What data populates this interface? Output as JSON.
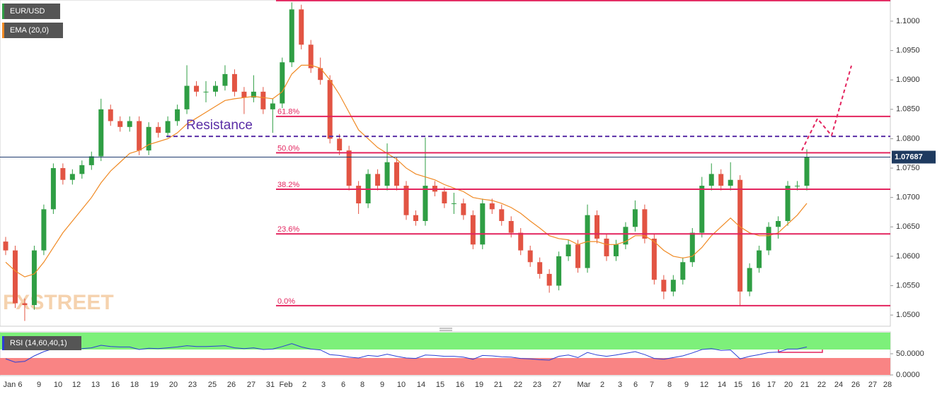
{
  "chart_data": {
    "type": "candlestick",
    "symbol": "EUR/USD",
    "ema_label": "EMA (20,0)",
    "watermark": "FXSTREET",
    "up_color": "#2f9e44",
    "down_color": "#e25443",
    "open": [
      1.0625,
      1.061,
      1.052,
      1.0517,
      1.061,
      1.068,
      1.075,
      1.073,
      1.074,
      1.0755,
      1.077,
      1.085,
      1.083,
      1.082,
      1.083,
      1.078,
      1.082,
      1.081,
      1.083,
      1.085,
      1.089,
      1.088,
      1.088,
      1.089,
      1.091,
      1.088,
      1.087,
      1.088,
      1.085,
      1.086,
      1.093,
      1.102,
      1.096,
      1.092,
      1.09,
      1.08,
      1.078,
      1.072,
      1.069,
      1.074,
      1.072,
      1.076,
      1.072,
      1.067,
      1.066,
      1.072,
      1.071,
      1.069,
      1.069,
      1.067,
      1.062,
      1.069,
      1.068,
      1.066,
      1.064,
      1.061,
      1.059,
      1.057,
      1.055,
      1.06,
      1.062,
      1.058,
      1.067,
      1.063,
      1.06,
      1.062,
      1.065,
      1.068,
      1.063,
      1.056,
      1.054,
      1.056,
      1.059,
      1.064,
      1.072,
      1.074,
      1.072,
      1.073,
      1.054,
      1.058,
      1.061,
      1.065,
      1.066,
      1.072,
      1.072
    ],
    "high": [
      1.0633,
      1.0618,
      1.0528,
      1.0618,
      1.0688,
      1.0758,
      1.0758,
      1.0748,
      1.0763,
      1.0778,
      1.0868,
      1.0858,
      1.0838,
      1.0838,
      1.0838,
      1.0828,
      1.0828,
      1.0838,
      1.0858,
      1.0925,
      1.0898,
      1.0898,
      1.0898,
      1.0925,
      1.0918,
      1.0888,
      1.0908,
      1.0888,
      1.0868,
      1.0938,
      1.1032,
      1.1028,
      1.0968,
      1.0938,
      1.0908,
      1.0808,
      1.0788,
      1.0728,
      1.0748,
      1.0748,
      1.0792,
      1.0768,
      1.0728,
      1.0678,
      1.0802,
      1.0728,
      1.0718,
      1.0708,
      1.0698,
      1.0678,
      1.0698,
      1.0698,
      1.0688,
      1.0668,
      1.0648,
      1.0618,
      1.0598,
      1.0578,
      1.0608,
      1.0628,
      1.0628,
      1.0688,
      1.0678,
      1.0638,
      1.0628,
      1.0658,
      1.0695,
      1.0688,
      1.0638,
      1.0568,
      1.0568,
      1.0598,
      1.0648,
      1.0735,
      1.0758,
      1.0748,
      1.076,
      1.0738,
      1.0588,
      1.0618,
      1.0658,
      1.0668,
      1.0728,
      1.0728,
      1.0782
    ],
    "low": [
      1.0602,
      1.0512,
      1.049,
      1.0509,
      1.0602,
      1.0672,
      1.0722,
      1.0722,
      1.0732,
      1.0747,
      1.0762,
      1.0822,
      1.0812,
      1.0812,
      1.0772,
      1.0772,
      1.0802,
      1.0802,
      1.0822,
      1.0842,
      1.0872,
      1.0862,
      1.0872,
      1.0882,
      1.0872,
      1.0842,
      1.0862,
      1.0842,
      1.081,
      1.0852,
      1.0922,
      1.0952,
      1.0912,
      1.0892,
      1.0792,
      1.0772,
      1.0712,
      1.0672,
      1.0682,
      1.0712,
      1.0712,
      1.0712,
      1.0662,
      1.0652,
      1.0652,
      1.0702,
      1.0682,
      1.0672,
      1.0662,
      1.0612,
      1.0612,
      1.0672,
      1.0652,
      1.0632,
      1.0602,
      1.0582,
      1.0562,
      1.0538,
      1.0542,
      1.0592,
      1.0572,
      1.0572,
      1.0622,
      1.0592,
      1.0592,
      1.0612,
      1.0642,
      1.0622,
      1.0552,
      1.0527,
      1.0532,
      1.0552,
      1.0582,
      1.0632,
      1.0712,
      1.0712,
      1.0712,
      1.0515,
      1.0532,
      1.0572,
      1.0602,
      1.063,
      1.0652,
      1.0712,
      1.0712
    ],
    "close": [
      1.061,
      1.052,
      1.0517,
      1.061,
      1.068,
      1.075,
      1.073,
      1.074,
      1.0755,
      1.077,
      1.085,
      1.083,
      1.082,
      1.083,
      1.078,
      1.082,
      1.081,
      1.083,
      1.085,
      1.089,
      1.088,
      1.088,
      1.089,
      1.091,
      1.088,
      1.087,
      1.088,
      1.085,
      1.086,
      1.093,
      1.102,
      1.096,
      1.092,
      1.09,
      1.08,
      1.078,
      1.072,
      1.069,
      1.074,
      1.072,
      1.076,
      1.072,
      1.067,
      1.066,
      1.072,
      1.071,
      1.069,
      1.069,
      1.067,
      1.062,
      1.069,
      1.068,
      1.066,
      1.064,
      1.061,
      1.059,
      1.057,
      1.055,
      1.06,
      1.062,
      1.058,
      1.067,
      1.063,
      1.06,
      1.062,
      1.065,
      1.068,
      1.063,
      1.056,
      1.054,
      1.056,
      1.059,
      1.064,
      1.072,
      1.074,
      1.072,
      1.073,
      1.054,
      1.058,
      1.061,
      1.065,
      1.066,
      1.072,
      1.072,
      1.0769
    ],
    "ema": {
      "color": "#f08a24",
      "values": [
        1.059,
        1.0575,
        1.0565,
        1.057,
        1.059,
        1.0615,
        1.064,
        1.066,
        1.068,
        1.07,
        1.0725,
        1.0745,
        1.076,
        1.0775,
        1.078,
        1.079,
        1.0795,
        1.08,
        1.081,
        1.0825,
        1.0835,
        1.0845,
        1.0855,
        1.0865,
        1.0868,
        1.087,
        1.0872,
        1.087,
        1.0868,
        1.088,
        1.091,
        1.0925,
        1.0925,
        1.092,
        1.09,
        1.0875,
        1.0845,
        1.0815,
        1.08,
        1.0785,
        1.0775,
        1.0765,
        1.075,
        1.074,
        1.0735,
        1.073,
        1.0722,
        1.0716,
        1.071,
        1.07,
        1.0697,
        1.0695,
        1.069,
        1.0683,
        1.0673,
        1.066,
        1.0648,
        1.0635,
        1.063,
        1.0628,
        1.062,
        1.0625,
        1.0625,
        1.062,
        1.062,
        1.0625,
        1.0635,
        1.0635,
        1.0625,
        1.061,
        1.06,
        1.0597,
        1.06,
        1.0615,
        1.0635,
        1.065,
        1.0665,
        1.065,
        1.064,
        1.0635,
        1.0635,
        1.064,
        1.0655,
        1.067,
        1.069
      ]
    },
    "ylim": [
      1.0481,
      1.1036
    ],
    "yticks": [
      {
        "value": 1.1,
        "label": "1.1000"
      },
      {
        "value": 1.095,
        "label": "1.0950"
      },
      {
        "value": 1.09,
        "label": "1.0900"
      },
      {
        "value": 1.085,
        "label": "1.0850"
      },
      {
        "value": 1.08,
        "label": "1.0800"
      },
      {
        "value": 1.075,
        "label": "1.0750"
      },
      {
        "value": 1.07,
        "label": "1.0700"
      },
      {
        "value": 1.065,
        "label": "1.0650"
      },
      {
        "value": 1.06,
        "label": "1.0600"
      },
      {
        "value": 1.055,
        "label": "1.0550"
      },
      {
        "value": 1.05,
        "label": "1.0500"
      }
    ],
    "last_price": 1.07687,
    "resistance": {
      "label": "Resistance",
      "value": 1.0804,
      "color": "#5a2ea6"
    },
    "fib_color": "#e3245e",
    "fib_levels": [
      {
        "price": 1.1035
      },
      {
        "label": "61.8%",
        "price": 1.0838
      },
      {
        "label": "50.0%",
        "price": 1.0776
      },
      {
        "label": "38.2%",
        "price": 1.0714
      },
      {
        "label": "23.6%",
        "price": 1.0638
      },
      {
        "label": "0.0%",
        "price": 1.0516
      }
    ],
    "x_labels": [
      "Jan 6",
      "9",
      "10",
      "12",
      "13",
      "16",
      "18",
      "19",
      "20",
      "23",
      "25",
      "26",
      "27",
      "31",
      "Feb",
      "2",
      "3",
      "6",
      "8",
      "9",
      "10",
      "14",
      "15",
      "16",
      "19",
      "21",
      "22",
      "23",
      "27",
      "Mar",
      "2",
      "3",
      "6",
      "7",
      "8",
      "9",
      "12",
      "14",
      "15",
      "16",
      "17",
      "20",
      "21",
      "22",
      "24",
      "26",
      "27",
      "28"
    ],
    "rsi": {
      "label": "RSI (14,60,40,1)",
      "color": "#2b3fd6",
      "upper": 60,
      "lower": 40,
      "ylim": [
        0,
        100
      ],
      "yticks": [
        {
          "value": 50,
          "label": "50.0000"
        },
        {
          "value": 0,
          "label": "0.0000"
        }
      ],
      "values": [
        38,
        30,
        32,
        45,
        55,
        62,
        60,
        61,
        62,
        64,
        70,
        67,
        66,
        66,
        60,
        63,
        62,
        64,
        66,
        69,
        67,
        67,
        68,
        69,
        64,
        62,
        64,
        60,
        61,
        67,
        74,
        66,
        61,
        59,
        48,
        46,
        42,
        40,
        46,
        44,
        49,
        44,
        40,
        39,
        47,
        46,
        44,
        44,
        42,
        37,
        46,
        45,
        43,
        42,
        39,
        38,
        36,
        35,
        44,
        47,
        41,
        53,
        47,
        44,
        47,
        51,
        55,
        48,
        39,
        37,
        41,
        45,
        52,
        60,
        62,
        58,
        59,
        38,
        44,
        48,
        53,
        54,
        61,
        61,
        66
      ]
    }
  }
}
